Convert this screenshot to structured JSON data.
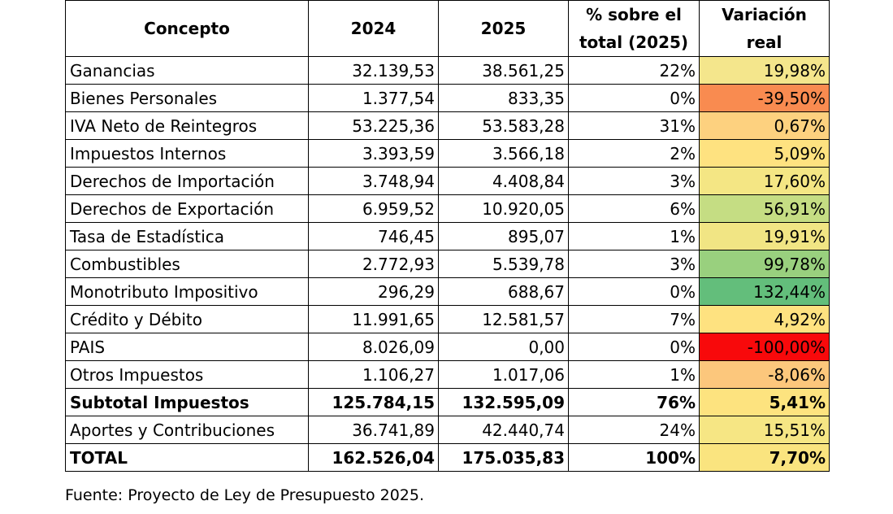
{
  "headers": [
    "Concepto",
    "2024",
    "2025",
    "% sobre el total (2025)",
    "Variación real"
  ],
  "rows": [
    {
      "concept": "Ganancias",
      "y2024": "32.139,53",
      "y2025": "38.561,25",
      "pct": "22%",
      "var": "19,98%",
      "color": "#f4e68c",
      "bold": false
    },
    {
      "concept": "Bienes Personales",
      "y2024": "1.377,54",
      "y2025": "833,35",
      "pct": "0%",
      "var": "-39,50%",
      "color": "#f98b50",
      "bold": false
    },
    {
      "concept": "IVA Neto de Reintegros",
      "y2024": "53.225,36",
      "y2025": "53.583,28",
      "pct": "31%",
      "var": "0,67%",
      "color": "#fdd17f",
      "bold": false
    },
    {
      "concept": "Impuestos Internos",
      "y2024": "3.393,59",
      "y2025": "3.566,18",
      "pct": "2%",
      "var": "5,09%",
      "color": "#fee280",
      "bold": false
    },
    {
      "concept": "Derechos de Importación",
      "y2024": "3.748,94",
      "y2025": "4.408,84",
      "pct": "3%",
      "var": "17,60%",
      "color": "#f4e684",
      "bold": false
    },
    {
      "concept": "Derechos de Exportación",
      "y2024": "6.959,52",
      "y2025": "10.920,05",
      "pct": "6%",
      "var": "56,91%",
      "color": "#c5dd83",
      "bold": false
    },
    {
      "concept": "Tasa de Estadística",
      "y2024": "746,45",
      "y2025": "895,07",
      "pct": "1%",
      "var": "19,91%",
      "color": "#f1e584",
      "bold": false
    },
    {
      "concept": "Combustibles",
      "y2024": "2.772,93",
      "y2025": "5.539,78",
      "pct": "3%",
      "var": "99,78%",
      "color": "#99d07e",
      "bold": false
    },
    {
      "concept": "Monotributo Impositivo",
      "y2024": "296,29",
      "y2025": "688,67",
      "pct": "0%",
      "var": "132,44%",
      "color": "#63be7b",
      "bold": false
    },
    {
      "concept": "Crédito y Débito",
      "y2024": "11.991,65",
      "y2025": "12.581,57",
      "pct": "7%",
      "var": "4,92%",
      "color": "#fee280",
      "bold": false
    },
    {
      "concept": "PAIS",
      "y2024": "8.026,09",
      "y2025": "0,00",
      "pct": "0%",
      "var": "-100,00%",
      "color": "#f8090b",
      "bold": false
    },
    {
      "concept": "Otros Impuestos",
      "y2024": "1.106,27",
      "y2025": "1.017,06",
      "pct": "1%",
      "var": "-8,06%",
      "color": "#fcc77c",
      "bold": false
    },
    {
      "concept": "Subtotal Impuestos",
      "y2024": "125.784,15",
      "y2025": "132.595,09",
      "pct": "76%",
      "var": "5,41%",
      "color": "#fde37f",
      "bold": true
    },
    {
      "concept": "Aportes y Contribuciones",
      "y2024": "36.741,89",
      "y2025": "42.440,74",
      "pct": "24%",
      "var": "15,51%",
      "color": "#f6e684",
      "bold": false
    },
    {
      "concept": "TOTAL",
      "y2024": "162.526,04",
      "y2025": "175.035,83",
      "pct": "100%",
      "var": "7,70%",
      "color": "#fae47f",
      "bold": true
    }
  ],
  "source": "Fuente: Proyecto de Ley de Presupuesto 2025."
}
